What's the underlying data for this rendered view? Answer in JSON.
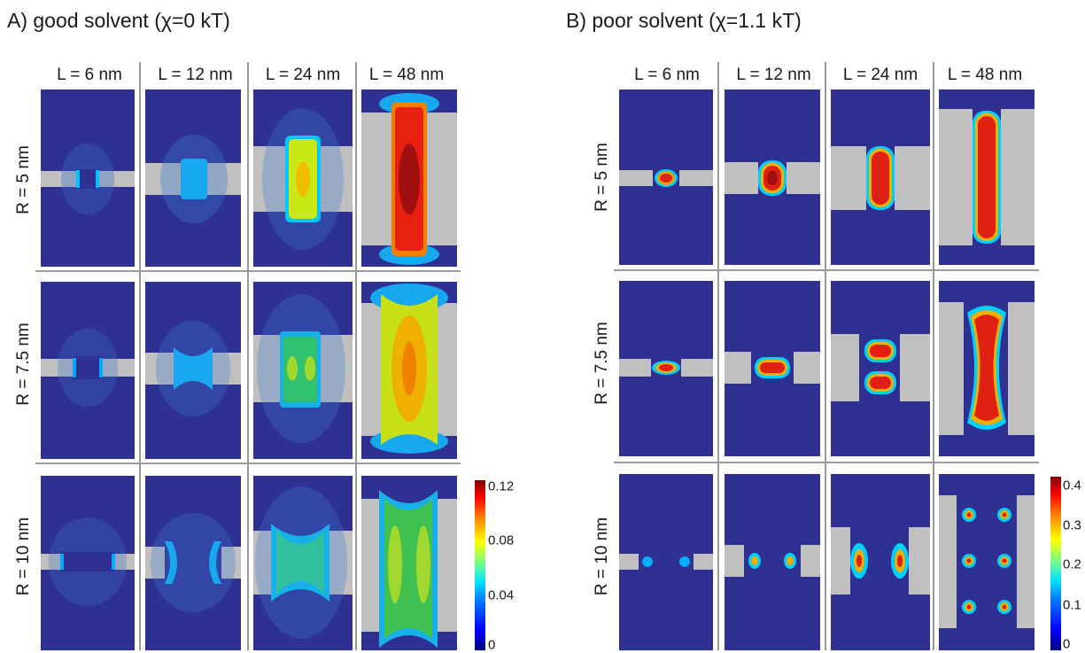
{
  "panels": [
    {
      "title": "A) good solvent (χ=0 kT)",
      "columns": [
        "L = 6 nm",
        "L = 12 nm",
        "L = 24 nm",
        "L = 48 nm"
      ],
      "rows": [
        "R = 5 nm",
        "R = 7.5 nm",
        "R = 10 nm"
      ],
      "colorbar": {
        "ticks": [
          "0.12",
          "0.08",
          "0.04",
          "0"
        ]
      }
    },
    {
      "title": "B) poor solvent (χ=1.1 kT)",
      "columns": [
        "L = 6 nm",
        "L = 12 nm",
        "L = 24 nm",
        "L = 48 nm"
      ],
      "rows": [
        "R = 5 nm",
        "R = 7.5 nm",
        "R = 10 nm"
      ],
      "colorbar": {
        "ticks": [
          "0.4",
          "0.3",
          "0.2",
          "0.1",
          "0"
        ]
      }
    }
  ],
  "colors": {
    "background": "#2e3192",
    "wall": "#c0c0c0",
    "separator": "#9a9a9a"
  }
}
